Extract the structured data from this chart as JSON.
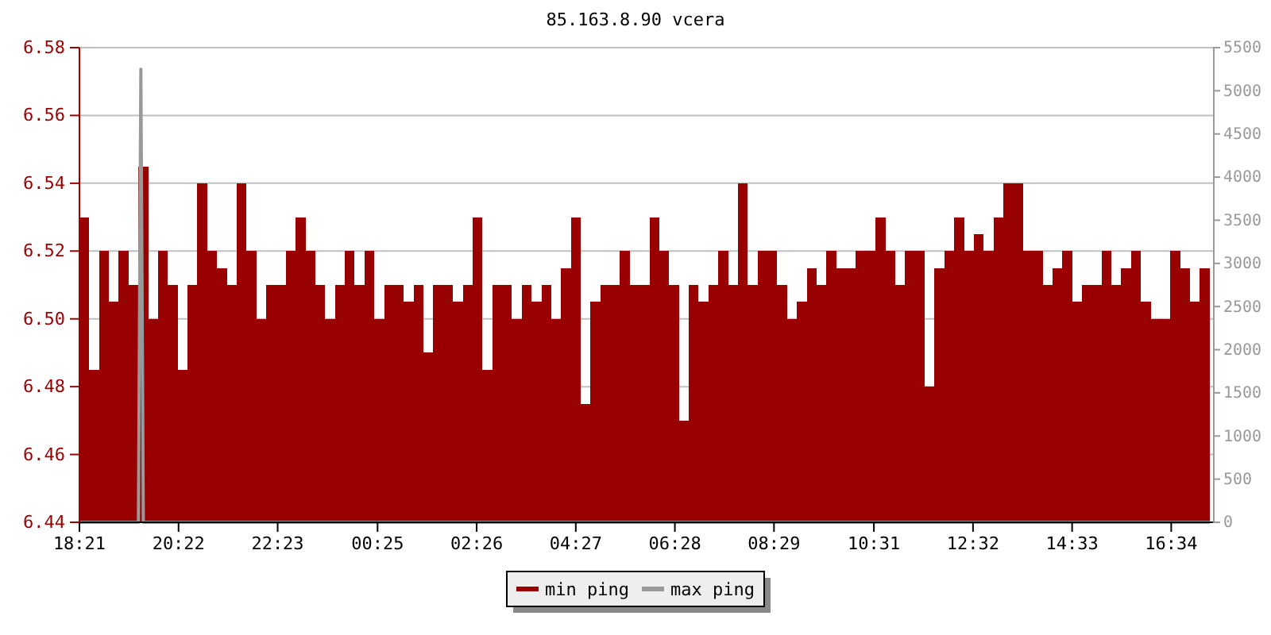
{
  "chart_data": {
    "type": "bar",
    "title": "85.163.8.90 vcera",
    "xlim": [
      "2000-01-01T18:21",
      "2000-01-02T17:26"
    ],
    "xticks": [
      {
        "value": "2000-01-01T18:21",
        "label": "18:21"
      },
      {
        "value": "2000-01-01T20:22",
        "label": "20:22"
      },
      {
        "value": "2000-01-01T22:23",
        "label": "22:23"
      },
      {
        "value": "2000-01-02T00:25",
        "label": "00:25"
      },
      {
        "value": "2000-01-02T02:26",
        "label": "02:26"
      },
      {
        "value": "2000-01-02T04:27",
        "label": "04:27"
      },
      {
        "value": "2000-01-02T06:28",
        "label": "06:28"
      },
      {
        "value": "2000-01-02T08:29",
        "label": "08:29"
      },
      {
        "value": "2000-01-02T10:31",
        "label": "10:31"
      },
      {
        "value": "2000-01-02T12:32",
        "label": "12:32"
      },
      {
        "value": "2000-01-02T14:33",
        "label": "14:33"
      },
      {
        "value": "2000-01-02T16:34",
        "label": "16:34"
      }
    ],
    "ylim": [
      6.44,
      6.58
    ],
    "yticks": [
      6.44,
      6.46,
      6.48,
      {
        "value": 6.5,
        "label": "6.50"
      },
      6.52,
      6.54,
      6.56,
      6.58
    ],
    "y2lim": [
      0,
      5500
    ],
    "y2ticks": [
      0,
      500,
      1000,
      1500,
      2000,
      2500,
      3000,
      3500,
      4000,
      4500,
      5000,
      5500
    ],
    "grid": "y",
    "legend": "bottom",
    "series": [
      {
        "name": "min ping",
        "color": "#990000",
        "x": [
          "2000-01-01T18:21",
          "2000-01-01T18:33",
          "2000-01-01T18:45",
          "2000-01-01T18:57",
          "2000-01-01T19:09",
          "2000-01-01T19:21",
          "2000-01-01T19:33",
          "2000-01-01T19:45",
          "2000-01-01T19:57",
          "2000-01-01T20:09",
          "2000-01-01T20:21",
          "2000-01-01T20:33",
          "2000-01-01T20:45",
          "2000-01-01T20:57",
          "2000-01-01T21:09",
          "2000-01-01T21:21",
          "2000-01-01T21:33",
          "2000-01-01T21:45",
          "2000-01-01T21:57",
          "2000-01-01T22:09",
          "2000-01-01T22:21",
          "2000-01-01T22:33",
          "2000-01-01T22:45",
          "2000-01-01T22:57",
          "2000-01-01T23:09",
          "2000-01-01T23:21",
          "2000-01-01T23:33",
          "2000-01-01T23:45",
          "2000-01-01T23:57",
          "2000-01-02T00:09",
          "2000-01-02T00:21",
          "2000-01-02T00:33",
          "2000-01-02T00:45",
          "2000-01-02T00:57",
          "2000-01-02T01:09",
          "2000-01-02T01:21",
          "2000-01-02T01:33",
          "2000-01-02T01:45",
          "2000-01-02T01:57",
          "2000-01-02T02:09",
          "2000-01-02T02:21",
          "2000-01-02T02:33",
          "2000-01-02T02:45",
          "2000-01-02T02:57",
          "2000-01-02T03:09",
          "2000-01-02T03:21",
          "2000-01-02T03:33",
          "2000-01-02T03:45",
          "2000-01-02T03:57",
          "2000-01-02T04:09",
          "2000-01-02T04:21",
          "2000-01-02T04:33",
          "2000-01-02T04:45",
          "2000-01-02T04:57",
          "2000-01-02T05:09",
          "2000-01-02T05:21",
          "2000-01-02T05:33",
          "2000-01-02T05:45",
          "2000-01-02T05:57",
          "2000-01-02T06:09",
          "2000-01-02T06:21",
          "2000-01-02T06:33",
          "2000-01-02T06:45",
          "2000-01-02T06:57",
          "2000-01-02T07:09",
          "2000-01-02T07:21",
          "2000-01-02T07:33",
          "2000-01-02T07:45",
          "2000-01-02T07:57",
          "2000-01-02T08:09",
          "2000-01-02T08:21",
          "2000-01-02T08:33",
          "2000-01-02T08:45",
          "2000-01-02T08:57",
          "2000-01-02T09:09",
          "2000-01-02T09:21",
          "2000-01-02T09:33",
          "2000-01-02T09:45",
          "2000-01-02T09:57",
          "2000-01-02T10:09",
          "2000-01-02T10:21",
          "2000-01-02T10:33",
          "2000-01-02T10:45",
          "2000-01-02T10:57",
          "2000-01-02T11:09",
          "2000-01-02T11:21",
          "2000-01-02T11:33",
          "2000-01-02T11:45",
          "2000-01-02T11:57",
          "2000-01-02T12:09",
          "2000-01-02T12:21",
          "2000-01-02T12:33",
          "2000-01-02T12:45",
          "2000-01-02T12:57",
          "2000-01-02T13:09",
          "2000-01-02T13:21",
          "2000-01-02T13:33",
          "2000-01-02T13:45",
          "2000-01-02T13:57",
          "2000-01-02T14:09",
          "2000-01-02T14:21",
          "2000-01-02T14:33",
          "2000-01-02T14:45",
          "2000-01-02T14:57",
          "2000-01-02T15:09",
          "2000-01-02T15:21",
          "2000-01-02T15:33",
          "2000-01-02T15:45",
          "2000-01-02T15:57",
          "2000-01-02T16:09",
          "2000-01-02T16:21",
          "2000-01-02T16:33",
          "2000-01-02T16:45",
          "2000-01-02T16:57",
          "2000-01-02T17:09"
        ],
        "values": [
          6.53,
          6.485,
          6.52,
          6.505,
          6.52,
          6.51,
          6.545,
          6.5,
          6.52,
          6.51,
          6.485,
          6.51,
          6.54,
          6.52,
          6.515,
          6.51,
          6.54,
          6.52,
          6.5,
          6.51,
          6.51,
          6.52,
          6.53,
          6.52,
          6.51,
          6.5,
          6.51,
          6.52,
          6.51,
          6.52,
          6.5,
          6.51,
          6.51,
          6.505,
          6.51,
          6.49,
          6.51,
          6.51,
          6.505,
          6.51,
          6.53,
          6.485,
          6.51,
          6.51,
          6.5,
          6.51,
          6.505,
          6.51,
          6.5,
          6.515,
          6.53,
          6.475,
          6.505,
          6.51,
          6.51,
          6.52,
          6.51,
          6.51,
          6.53,
          6.52,
          6.51,
          6.47,
          6.51,
          6.505,
          6.51,
          6.52,
          6.51,
          6.54,
          6.51,
          6.52,
          6.52,
          6.51,
          6.5,
          6.505,
          6.515,
          6.51,
          6.52,
          6.515,
          6.515,
          6.52,
          6.52,
          6.53,
          6.52,
          6.51,
          6.52,
          6.52,
          6.48,
          6.515,
          6.52,
          6.53,
          6.52,
          6.525,
          6.52,
          6.53,
          6.54,
          6.54,
          6.52,
          6.52,
          6.51,
          6.515,
          6.52,
          6.505,
          6.51,
          6.51,
          6.52,
          6.51,
          6.515,
          6.52,
          6.505,
          6.5,
          6.5,
          6.52,
          6.515,
          6.505,
          6.515
        ]
      },
      {
        "name": "max ping",
        "type": "line",
        "axis": "y2",
        "color": "#999999",
        "x": [
          "2000-01-01T18:21",
          "2000-01-01T19:33",
          "2000-01-01T19:36",
          "2000-01-01T19:39",
          "2000-01-02T17:21"
        ],
        "values": [
          0,
          0,
          5250,
          0,
          0
        ]
      }
    ]
  }
}
